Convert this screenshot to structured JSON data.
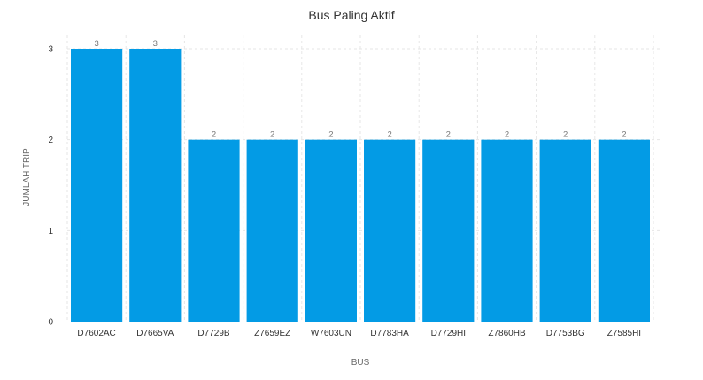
{
  "chart_data": {
    "type": "bar",
    "title": "Bus Paling Aktif",
    "xlabel": "BUS",
    "ylabel": "JUMLAH TRIP",
    "categories": [
      "D7602AC",
      "D7665VA",
      "D7729B",
      "Z7659EZ",
      "W7603UN",
      "D7783HA",
      "D7729HI",
      "Z7860HB",
      "D7753BG",
      "Z7585HI"
    ],
    "values": [
      3,
      3,
      2,
      2,
      2,
      2,
      2,
      2,
      2,
      2
    ],
    "ylim": [
      0,
      3
    ],
    "yticks": [
      "0",
      "1",
      "2",
      "3"
    ],
    "bar_color": "#039BE5",
    "grid": true,
    "legend": "none",
    "data_labels": true
  }
}
